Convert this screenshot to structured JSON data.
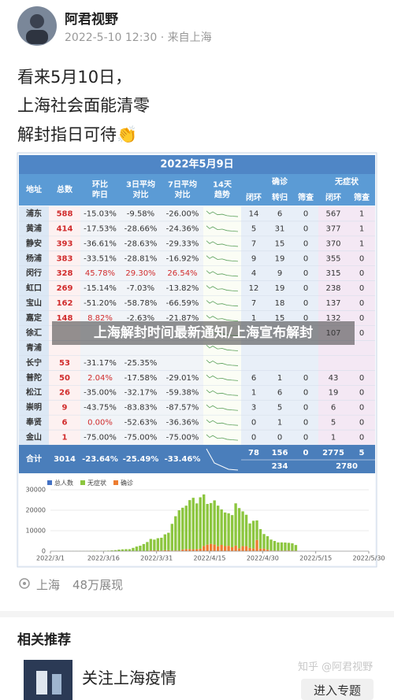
{
  "post": {
    "author": "阿君视野",
    "meta": "2022-5-10 12:30 · 来自上海",
    "lines": [
      "看来5月10日，",
      "上海社会面能清零",
      "解封指日可待👏"
    ],
    "table": {
      "title": "2022年5月9日",
      "header": [
        [
          "地址"
        ],
        [
          "总数"
        ],
        [
          "环比",
          "昨日"
        ],
        [
          "3日平均",
          "对比"
        ],
        [
          "7日平均",
          "对比"
        ],
        [
          "14天",
          "趋势"
        ]
      ],
      "groups": [
        "确诊",
        "无症状"
      ],
      "subheaders": [
        "闭环",
        "转归",
        "筛查",
        "闭环",
        "筛查"
      ],
      "rows": [
        [
          "浦东",
          588,
          "-15.03%",
          "-9.58%",
          "-26.00%",
          14,
          6,
          0,
          567,
          1
        ],
        [
          "黄浦",
          414,
          "-17.53%",
          "-28.66%",
          "-24.36%",
          5,
          31,
          0,
          377,
          1
        ],
        [
          "静安",
          393,
          "-36.61%",
          "-28.63%",
          "-29.33%",
          7,
          15,
          0,
          370,
          1
        ],
        [
          "杨浦",
          383,
          "-33.51%",
          "-28.81%",
          "-16.92%",
          9,
          19,
          0,
          355,
          0
        ],
        [
          "闵行",
          328,
          "45.78%",
          "29.30%",
          "26.54%",
          4,
          9,
          0,
          315,
          0
        ],
        [
          "虹口",
          269,
          "-15.14%",
          "-7.03%",
          "-13.82%",
          12,
          19,
          0,
          238,
          0
        ],
        [
          "宝山",
          162,
          "-51.20%",
          "-58.78%",
          "-66.59%",
          7,
          18,
          0,
          137,
          0
        ],
        [
          "嘉定",
          148,
          "8.82%",
          "-2.63%",
          "-21.87%",
          1,
          15,
          0,
          132,
          0
        ],
        [
          "徐汇",
          null,
          null,
          null,
          null,
          null,
          null,
          null,
          107,
          0
        ],
        [
          "青浦",
          null,
          null,
          null,
          null,
          null,
          null,
          null,
          null,
          null
        ],
        [
          "长宁",
          53,
          "-31.17%",
          "-25.35%",
          null,
          null,
          null,
          null,
          null,
          null
        ],
        [
          "普陀",
          50,
          "2.04%",
          "-17.58%",
          "-29.01%",
          6,
          1,
          0,
          43,
          0
        ],
        [
          "松江",
          26,
          "-35.00%",
          "-32.17%",
          "-59.38%",
          1,
          6,
          0,
          19,
          0
        ],
        [
          "崇明",
          9,
          "-43.75%",
          "-83.83%",
          "-87.57%",
          3,
          5,
          0,
          6,
          0
        ],
        [
          "奉贤",
          6,
          "0.00%",
          "-52.63%",
          "-36.36%",
          0,
          1,
          0,
          5,
          0
        ],
        [
          "金山",
          1,
          "-75.00%",
          "-75.00%",
          "-75.00%",
          0,
          0,
          0,
          1,
          0
        ]
      ],
      "total": [
        "合计",
        3014,
        "-23.64%",
        "-25.49%",
        "-33.46%",
        78,
        156,
        0,
        2775,
        5
      ],
      "subtotals": [
        234,
        2780
      ]
    },
    "chart": {
      "type": "bar",
      "legend": [
        {
          "name": "总人数",
          "color": "#4472c4"
        }
      ],
      "x": [
        0,
        1,
        2,
        3,
        4,
        5,
        6,
        7,
        8,
        9,
        10,
        11,
        12,
        13,
        14,
        15,
        16,
        17,
        18,
        19,
        20,
        21,
        22,
        23,
        24,
        25,
        26,
        27,
        28,
        29,
        30,
        31,
        32,
        33,
        34,
        35,
        36,
        37,
        38,
        39,
        40,
        41,
        42,
        43,
        44,
        45,
        46,
        47,
        48,
        49,
        50,
        51,
        52,
        53,
        54,
        55,
        56,
        57,
        58,
        59,
        60,
        61,
        62,
        63,
        64,
        65,
        66,
        67,
        68,
        69
      ],
      "series": [
        {
          "name": "确诊",
          "color": "#ed7d31",
          "values": [
            0,
            0,
            0,
            1,
            0,
            3,
            3,
            4,
            3,
            11,
            5,
            1,
            41,
            5,
            5,
            8,
            57,
            8,
            17,
            24,
            31,
            4,
            4,
            29,
            38,
            45,
            50,
            96,
            326,
            355,
            358,
            260,
            438,
            425,
            268,
            311,
            322,
            824,
            1015,
            1006,
            914,
            994,
            1189,
            2573,
            3200,
            3590,
            3238,
            2417,
            3084,
            2494,
            2634,
            1931,
            2736,
            1401,
            2472,
            2472,
            1606,
            1292,
            5487,
            1249,
            1287,
            727,
            274,
            260,
            261,
            245,
            253,
            322,
            215,
            234
          ]
        },
        {
          "name": "无症状",
          "color": "#8cc63f",
          "values": [
            2,
            3,
            14,
            16,
            45,
            50,
            55,
            62,
            76,
            64,
            64,
            130,
            169,
            128,
            150,
            197,
            203,
            366,
            492,
            734,
            865,
            977,
            979,
            1582,
            2231,
            2631,
            3450,
            4381,
            5656,
            5298,
            5982,
            6311,
            7788,
            8581,
            13086,
            16766,
            19660,
            20398,
            21222,
            23937,
            25173,
            22348,
            25141,
            25146,
            19872,
            19923,
            21582,
            19831,
            17332,
            16407,
            15861,
            15698,
            20634,
            19657,
            16983,
            15319,
            11956,
            13562,
            9545,
            9545,
            7084,
            6606,
            5395,
            4722,
            4024,
            4045,
            3961,
            3760,
            3625,
            2780
          ]
        }
      ],
      "xlim": [
        0,
        90
      ],
      "xticks": [
        {
          "value": 0,
          "label": "2022/3/1"
        },
        {
          "value": 15,
          "label": "2022/3/16"
        },
        {
          "value": 30,
          "label": "2022/3/31"
        },
        {
          "value": 45,
          "label": "2022/4/15"
        },
        {
          "value": 60,
          "label": "2022/4/30"
        },
        {
          "value": 75,
          "label": "2022/5/15"
        },
        {
          "value": 90,
          "label": "2022/5/30"
        }
      ],
      "ylim": [
        0,
        30000
      ],
      "yticks": [
        0,
        10000,
        20000,
        30000
      ],
      "grid": true
    },
    "overlay": "上海解封时间最新通知/上海宣布解封",
    "location": "上海",
    "views": "48万展现",
    "related": {
      "heading": "相关推荐",
      "title": "关注上海疫情",
      "button": "进入专题"
    },
    "watermark": "知乎 @阿君视野"
  }
}
